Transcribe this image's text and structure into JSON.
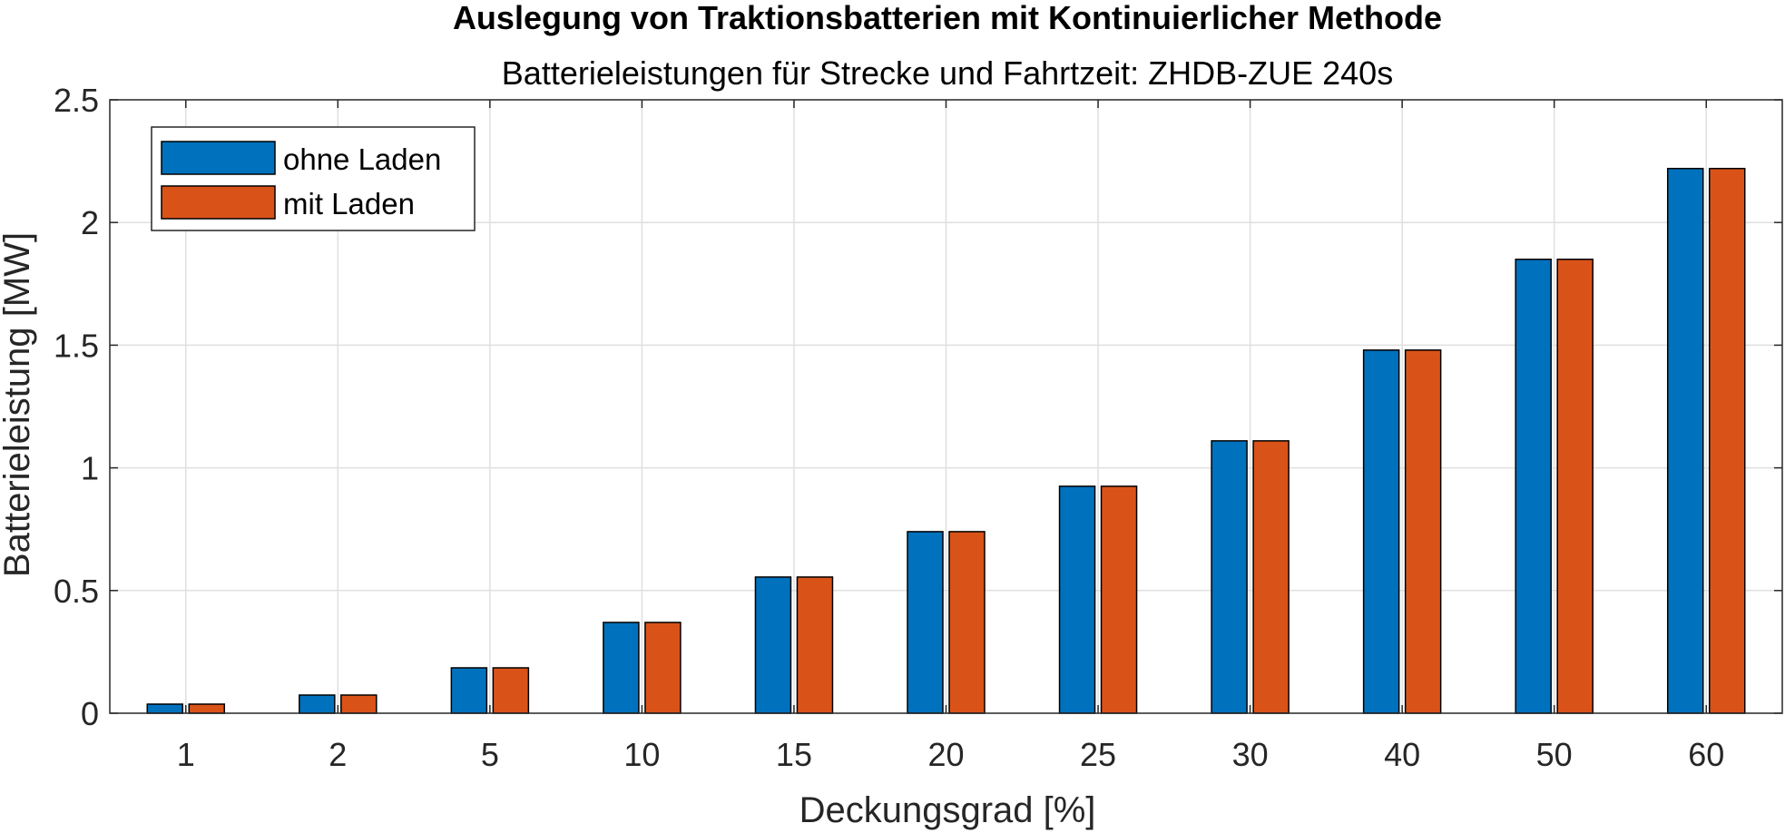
{
  "chart_data": {
    "type": "bar",
    "title": "Auslegung von Traktionsbatterien mit Kontinuierlicher Methode",
    "subtitle": "Batterieleistungen für Strecke und Fahrtzeit: ZHDB-ZUE 240s",
    "xlabel": "Deckungsgrad [%]",
    "ylabel": "Batterieleistung [MW]",
    "categories": [
      "1",
      "2",
      "5",
      "10",
      "15",
      "20",
      "25",
      "30",
      "40",
      "50",
      "60"
    ],
    "ylim": [
      0,
      2.5
    ],
    "yticks": [
      "0",
      "0.5",
      "1",
      "1.5",
      "2",
      "2.5"
    ],
    "grid": true,
    "legend_position": "top-left",
    "series": [
      {
        "name": "ohne Laden",
        "color": "#0072BD",
        "values": [
          0.037,
          0.074,
          0.185,
          0.37,
          0.555,
          0.74,
          0.925,
          1.11,
          1.48,
          1.85,
          2.22
        ]
      },
      {
        "name": "mit Laden",
        "color": "#D95319",
        "values": [
          0.037,
          0.074,
          0.185,
          0.37,
          0.555,
          0.74,
          0.925,
          1.11,
          1.48,
          1.85,
          2.22
        ]
      }
    ]
  }
}
